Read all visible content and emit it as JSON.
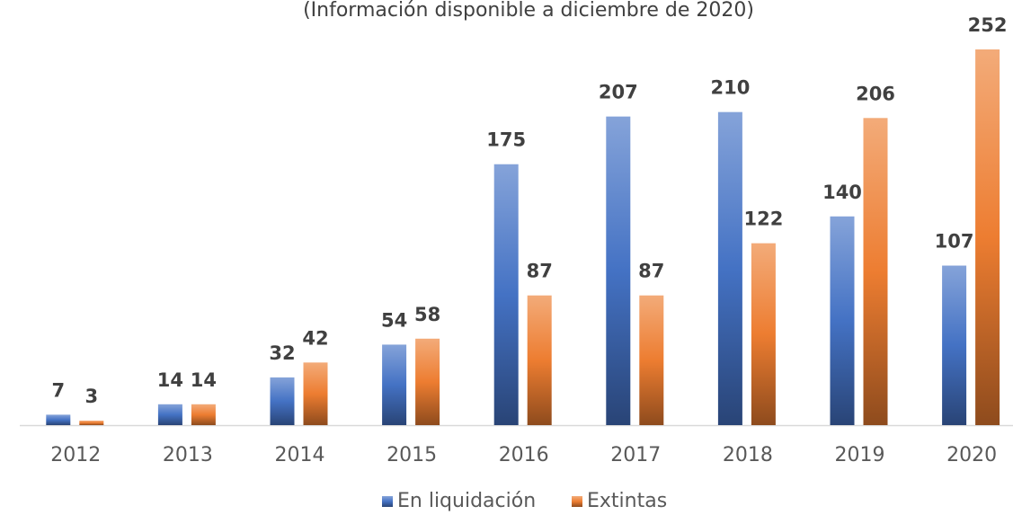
{
  "chart_data": {
    "type": "bar",
    "subtitle": "(Información disponible a diciembre de 2020)",
    "categories": [
      "2012",
      "2013",
      "2014",
      "2015",
      "2016",
      "2017",
      "2018",
      "2019",
      "2020"
    ],
    "series": [
      {
        "name": "En liquidación",
        "color": "#4472c4",
        "values": [
          7,
          14,
          32,
          54,
          175,
          207,
          210,
          140,
          107
        ]
      },
      {
        "name": "Extintas",
        "color": "#ed7d31",
        "values": [
          3,
          14,
          42,
          58,
          87,
          87,
          122,
          206,
          252
        ]
      }
    ]
  }
}
